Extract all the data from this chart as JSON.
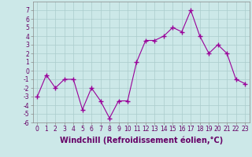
{
  "x": [
    0,
    1,
    2,
    3,
    4,
    5,
    6,
    7,
    8,
    9,
    10,
    11,
    12,
    13,
    14,
    15,
    16,
    17,
    18,
    19,
    20,
    21,
    22,
    23
  ],
  "y": [
    -3,
    -0.5,
    -2,
    -1,
    -1,
    -4.5,
    -2,
    -3.5,
    -5.5,
    -3.5,
    -3.5,
    1,
    3.5,
    3.5,
    4,
    5,
    4.5,
    7,
    4,
    2,
    3,
    2,
    -1,
    -1.5
  ],
  "line_color": "#990099",
  "marker": "+",
  "marker_size": 4,
  "background_color": "#cce8e8",
  "grid_color": "#aacccc",
  "xlabel": "Windchill (Refroidissement éolien,°C)",
  "xlabel_fontsize": 7,
  "ylim": [
    -6,
    8
  ],
  "xlim": [
    -0.5,
    23.5
  ],
  "yticks": [
    -6,
    -5,
    -4,
    -3,
    -2,
    -1,
    0,
    1,
    2,
    3,
    4,
    5,
    6,
    7
  ],
  "xticks": [
    0,
    1,
    2,
    3,
    4,
    5,
    6,
    7,
    8,
    9,
    10,
    11,
    12,
    13,
    14,
    15,
    16,
    17,
    18,
    19,
    20,
    21,
    22,
    23
  ],
  "tick_fontsize": 5.5,
  "line_width": 0.8
}
